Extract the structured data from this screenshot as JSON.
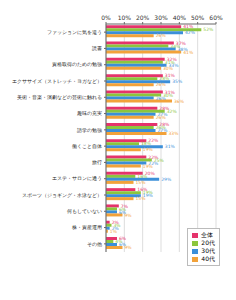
{
  "chart_data": {
    "type": "bar",
    "orientation": "horizontal",
    "categories": [
      "ファッションに気を遣う",
      "読書",
      "資格取得のための勉強",
      "エクササイズ（ストレッチ・ヨガなど）",
      "美術・音楽・演劇などの芸術に触れる",
      "趣味の充実",
      "語学の勉強",
      "働くこと自体",
      "旅行",
      "エステ・サロンに通う",
      "スポーツ（ジョギング・水泳など）",
      "何もしていない",
      "株・資産運用",
      "その他"
    ],
    "series": [
      {
        "name": "全体",
        "color": "#e5336c",
        "values": [
          41,
          37,
          32,
          31,
          31,
          28,
          28,
          22,
          22,
          20,
          16,
          7,
          2,
          6
        ],
        "value_labels": [
          "41%",
          "37%",
          "32%",
          "31%",
          "31%",
          "28%",
          "28%",
          "22%",
          "22%",
          "20%",
          "16%",
          "7%",
          "2%",
          "6%"
        ]
      },
      {
        "name": "20代",
        "color": "#8cc63e",
        "values": [
          52,
          34,
          31,
          28,
          30,
          32,
          26,
          18,
          25,
          16,
          19,
          6,
          3,
          4
        ],
        "value_labels": [
          "52%",
          "34%",
          "31%",
          "28%",
          "30%",
          "32%",
          "26%",
          "18%",
          "25%",
          "16%",
          "19%",
          "6%",
          "3%",
          "4%"
        ]
      },
      {
        "name": "30代",
        "color": "#3b8fd9",
        "values": [
          42,
          38,
          33,
          35,
          26,
          27,
          27,
          31,
          22,
          29,
          19,
          6,
          2,
          6
        ],
        "value_labels": [
          "42%",
          "38%",
          "33%",
          "35%",
          "26%",
          "27%",
          "27%",
          "31%",
          "22%",
          "29%",
          "19%",
          "6%",
          "2%",
          "6%"
        ]
      },
      {
        "name": "40代",
        "color": "#f2a23a",
        "values": [
          26,
          41,
          30,
          26,
          36,
          26,
          33,
          19,
          19,
          15,
          15,
          9,
          1,
          9
        ],
        "value_labels": [
          "26%",
          "41%",
          "30%",
          "26%",
          "36%",
          "26%",
          "33%",
          "19%",
          "19%",
          "15%",
          "15%",
          "9%",
          "1%",
          "9%"
        ]
      }
    ],
    "xlim": [
      0,
      60
    ],
    "xticks": [
      {
        "value": 0,
        "label": "0%"
      },
      {
        "value": 10,
        "label": "10%"
      },
      {
        "value": 20,
        "label": "20%"
      },
      {
        "value": 30,
        "label": "30%"
      },
      {
        "value": 40,
        "label": "40%"
      },
      {
        "value": 50,
        "label": "50%"
      },
      {
        "value": 60,
        "label": "60%"
      }
    ],
    "grid": true,
    "data_labels": true,
    "legend": "lower right"
  }
}
